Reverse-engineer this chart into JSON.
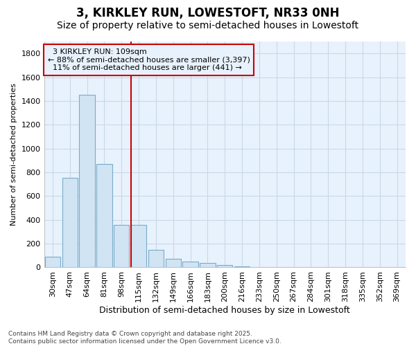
{
  "title1": "3, KIRKLEY RUN, LOWESTOFT, NR33 0NH",
  "title2": "Size of property relative to semi-detached houses in Lowestoft",
  "xlabel": "Distribution of semi-detached houses by size in Lowestoft",
  "ylabel": "Number of semi-detached properties",
  "categories": [
    "30sqm",
    "47sqm",
    "64sqm",
    "81sqm",
    "98sqm",
    "115sqm",
    "132sqm",
    "149sqm",
    "166sqm",
    "183sqm",
    "200sqm",
    "216sqm",
    "233sqm",
    "250sqm",
    "267sqm",
    "284sqm",
    "301sqm",
    "318sqm",
    "335sqm",
    "352sqm",
    "369sqm"
  ],
  "values": [
    90,
    755,
    1450,
    870,
    360,
    360,
    150,
    75,
    50,
    35,
    20,
    10,
    3,
    1,
    0,
    0,
    0,
    0,
    0,
    0,
    5
  ],
  "bar_color": "#d0e4f4",
  "bar_edge_color": "#7aaac8",
  "vline_x_index": 5,
  "vline_color": "#cc0000",
  "marker_label": "3 KIRKLEY RUN: 109sqm",
  "pct_smaller": 88,
  "count_smaller": 3397,
  "pct_larger": 11,
  "count_larger": 441,
  "annotation_box_color": "#cc0000",
  "ylim": [
    0,
    1900
  ],
  "yticks": [
    0,
    200,
    400,
    600,
    800,
    1000,
    1200,
    1400,
    1600,
    1800
  ],
  "grid_color": "#c8d8e8",
  "plot_bg_color": "#e8f2fc",
  "fig_bg_color": "#ffffff",
  "footer": "Contains HM Land Registry data © Crown copyright and database right 2025.\nContains public sector information licensed under the Open Government Licence v3.0.",
  "title1_fontsize": 12,
  "title2_fontsize": 10,
  "xlabel_fontsize": 9,
  "ylabel_fontsize": 8,
  "tick_fontsize": 8,
  "annot_fontsize": 8,
  "footer_fontsize": 6.5
}
